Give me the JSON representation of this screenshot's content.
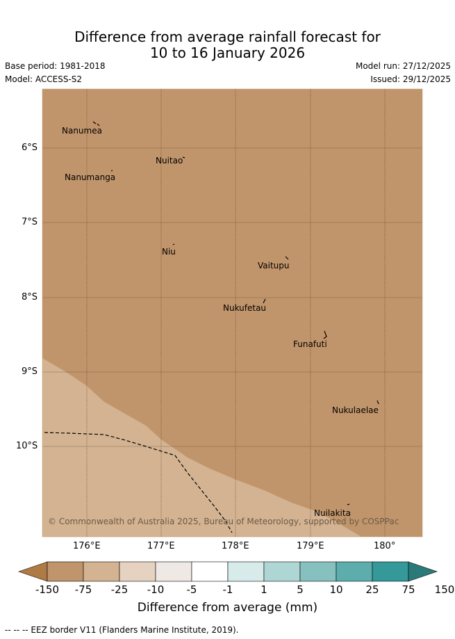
{
  "title_line1": "Difference from average rainfall forecast for",
  "title_line2": "10 to 16 January 2026",
  "base_period": "Base period: 1981-2018",
  "model": "Model: ACCESS-S2",
  "model_run": "Model run: 27/12/2025",
  "issued": "Issued: 29/12/2025",
  "copyright": "© Commonwealth of Australia 2025, Bureau of Meteorology, supported by COSPPac",
  "lon_ticks": [
    "176°E",
    "177°E",
    "178°E",
    "179°E",
    "180°"
  ],
  "lat_ticks": [
    "6°S",
    "7°S",
    "8°S",
    "9°S",
    "10°S"
  ],
  "places": [
    "Nanumea",
    "Nuitao",
    "Nanumanga",
    "Niu",
    "Vaitupu",
    "Nukufetau",
    "Funafuti",
    "Nukulaelae",
    "Nuilakita"
  ],
  "colorbar": {
    "labels": [
      "-150",
      "-75",
      "-25",
      "-10",
      "-5",
      "-1",
      "1",
      "5",
      "10",
      "25",
      "75",
      "150"
    ],
    "colors": [
      "#b07a45",
      "#c1956b",
      "#d3b391",
      "#e6d2c0",
      "#efe9e5",
      "#ffffff",
      "#d6ebea",
      "#aed6d5",
      "#86c1c0",
      "#5eadad",
      "#359999",
      "#2b7a7a"
    ],
    "title": "Difference from average (mm)"
  },
  "legend_note": "-- -- -- EEZ border V11 (Flanders Marine Institute, 2019)."
}
